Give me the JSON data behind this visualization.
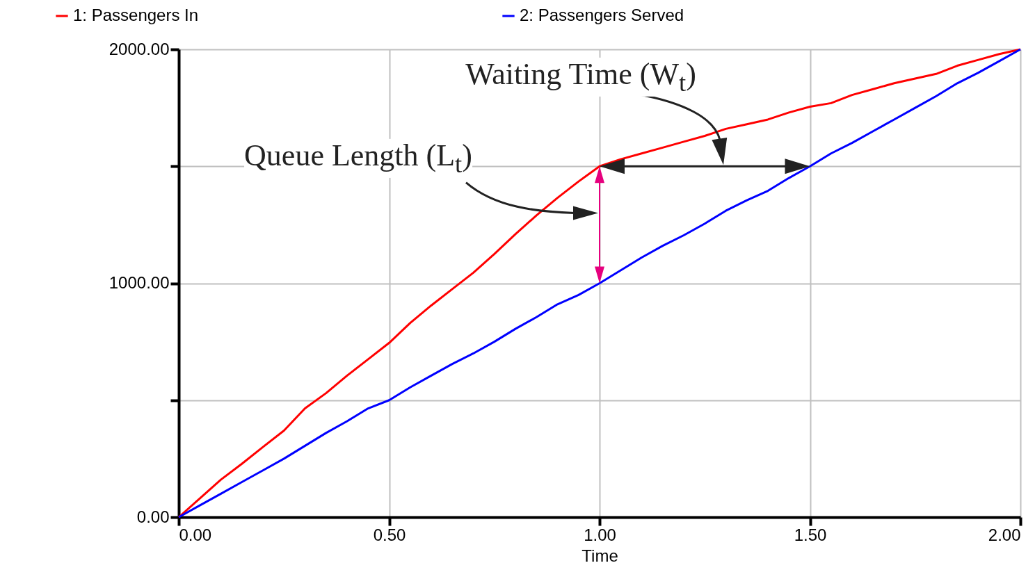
{
  "chart_data": {
    "type": "line",
    "xlabel": "Time",
    "x": [
      0,
      0.05,
      0.1,
      0.15,
      0.2,
      0.25,
      0.3,
      0.35,
      0.4,
      0.45,
      0.5,
      0.55,
      0.6,
      0.65,
      0.7,
      0.75,
      0.8,
      0.85,
      0.9,
      0.95,
      1.0,
      1.05,
      1.1,
      1.15,
      1.2,
      1.25,
      1.3,
      1.35,
      1.4,
      1.45,
      1.5,
      1.55,
      1.6,
      1.65,
      1.7,
      1.75,
      1.8,
      1.85,
      1.9,
      1.95,
      2.0
    ],
    "series": [
      {
        "name": "1: Passengers In",
        "color": "#ff0000",
        "values": [
          0,
          80,
          160,
          228,
          300,
          370,
          465,
          530,
          605,
          675,
          745,
          830,
          905,
          975,
          1045,
          1125,
          1210,
          1290,
          1365,
          1435,
          1500,
          1530,
          1555,
          1580,
          1605,
          1630,
          1660,
          1680,
          1700,
          1730,
          1755,
          1770,
          1805,
          1830,
          1855,
          1875,
          1895,
          1930,
          1955,
          1980,
          2000
        ]
      },
      {
        "name": "2: Passengers Served",
        "color": "#0000ff",
        "values": [
          0,
          50,
          100,
          150,
          200,
          250,
          305,
          360,
          410,
          465,
          500,
          555,
          605,
          655,
          700,
          750,
          805,
          855,
          910,
          950,
          1000,
          1055,
          1110,
          1160,
          1205,
          1255,
          1310,
          1355,
          1395,
          1450,
          1500,
          1555,
          1600,
          1650,
          1700,
          1750,
          1800,
          1855,
          1900,
          1950,
          2000
        ]
      }
    ],
    "xlim": [
      0,
      2
    ],
    "xticks": [
      {
        "value": 0,
        "label": "0.00"
      },
      {
        "value": 0.5,
        "label": "0.50"
      },
      {
        "value": 1,
        "label": "1.00"
      },
      {
        "value": 1.5,
        "label": "1.50"
      },
      {
        "value": 2,
        "label": "2.00"
      }
    ],
    "ylim": [
      0,
      2000
    ],
    "yticks": [
      {
        "value": 0,
        "label": "0.00"
      },
      {
        "value": 500,
        "label": null
      },
      {
        "value": 1000,
        "label": "1000.00"
      },
      {
        "value": 1500,
        "label": null
      },
      {
        "value": 2000,
        "label": "2000.00"
      }
    ],
    "grid": true,
    "legend": "top",
    "annotations": [
      {
        "text": "Waiting Time (W$_{t}$)",
        "x": 1.0,
        "y": 1500
      },
      "Queue Length (L$_{t}$)"
    ]
  }
}
